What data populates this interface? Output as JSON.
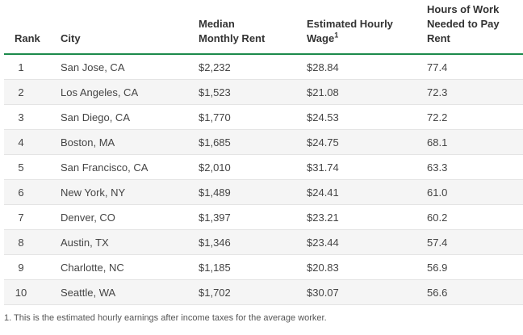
{
  "table": {
    "headers": {
      "rank": "Rank",
      "city": "City",
      "rent_line1": "Median",
      "rent_line2": "Monthly Rent",
      "wage_line1": "Estimated Hourly",
      "wage_line2": "Wage",
      "wage_sup": "1",
      "hours_line1": "Hours of Work",
      "hours_line2": "Needed to Pay",
      "hours_line3": "Rent"
    },
    "rows": [
      {
        "rank": "1",
        "city": "San Jose, CA",
        "rent": "$2,232",
        "wage": "$28.84",
        "hours": "77.4"
      },
      {
        "rank": "2",
        "city": "Los Angeles, CA",
        "rent": "$1,523",
        "wage": "$21.08",
        "hours": "72.3"
      },
      {
        "rank": "3",
        "city": "San Diego, CA",
        "rent": "$1,770",
        "wage": "$24.53",
        "hours": "72.2"
      },
      {
        "rank": "4",
        "city": "Boston, MA",
        "rent": "$1,685",
        "wage": "$24.75",
        "hours": "68.1"
      },
      {
        "rank": "5",
        "city": "San Francisco, CA",
        "rent": "$2,010",
        "wage": "$31.74",
        "hours": "63.3"
      },
      {
        "rank": "6",
        "city": "New York, NY",
        "rent": "$1,489",
        "wage": "$24.41",
        "hours": "61.0"
      },
      {
        "rank": "7",
        "city": "Denver, CO",
        "rent": "$1,397",
        "wage": "$23.21",
        "hours": "60.2"
      },
      {
        "rank": "8",
        "city": "Austin, TX",
        "rent": "$1,346",
        "wage": "$23.44",
        "hours": "57.4"
      },
      {
        "rank": "9",
        "city": "Charlotte, NC",
        "rent": "$1,185",
        "wage": "$20.83",
        "hours": "56.9"
      },
      {
        "rank": "10",
        "city": "Seattle, WA",
        "rent": "$1,702",
        "wage": "$30.07",
        "hours": "56.6"
      }
    ]
  },
  "footnote": "1. This is the estimated hourly earnings after income taxes for the average worker.",
  "colors": {
    "header_rule": "#1c8a4c",
    "row_stripe": "#f5f5f5"
  }
}
